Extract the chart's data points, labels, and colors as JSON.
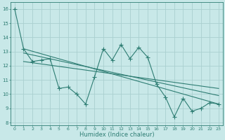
{
  "main_x": [
    0,
    1,
    2,
    3,
    4,
    5,
    6,
    7,
    8,
    9,
    10,
    11,
    12,
    13,
    14,
    15,
    16,
    17,
    18,
    19,
    20,
    21,
    22,
    23
  ],
  "main_y": [
    16,
    13.2,
    12.3,
    12.4,
    12.5,
    10.4,
    10.5,
    10.0,
    9.3,
    11.2,
    13.2,
    12.4,
    13.5,
    12.5,
    13.3,
    12.6,
    10.7,
    9.8,
    8.4,
    9.7,
    8.8,
    9.0,
    9.4,
    9.3
  ],
  "line1_x": [
    1,
    23
  ],
  "line1_y": [
    13.2,
    9.3
  ],
  "line2_x": [
    1,
    23
  ],
  "line2_y": [
    12.9,
    9.9
  ],
  "line3_x": [
    1,
    23
  ],
  "line3_y": [
    12.3,
    10.4
  ],
  "color": "#2e7d73",
  "bg_color": "#c8e8e8",
  "grid_color": "#aad0d0",
  "xlabel": "Humidex (Indice chaleur)",
  "ylim": [
    7.8,
    16.5
  ],
  "xlim": [
    -0.5,
    23.5
  ],
  "yticks": [
    8,
    9,
    10,
    11,
    12,
    13,
    14,
    15,
    16
  ],
  "xticks": [
    0,
    1,
    2,
    3,
    4,
    5,
    6,
    7,
    8,
    9,
    10,
    11,
    12,
    13,
    14,
    15,
    16,
    17,
    18,
    19,
    20,
    21,
    22,
    23
  ],
  "xtick_labels": [
    "0",
    "1",
    "2",
    "3",
    "4",
    "5",
    "6",
    "7",
    "8",
    "9",
    "10",
    "11",
    "12",
    "13",
    "14",
    "15",
    "16",
    "17",
    "18",
    "19",
    "20",
    "21",
    "22",
    "23"
  ],
  "marker": "+",
  "markersize": 4,
  "linewidth": 0.8
}
